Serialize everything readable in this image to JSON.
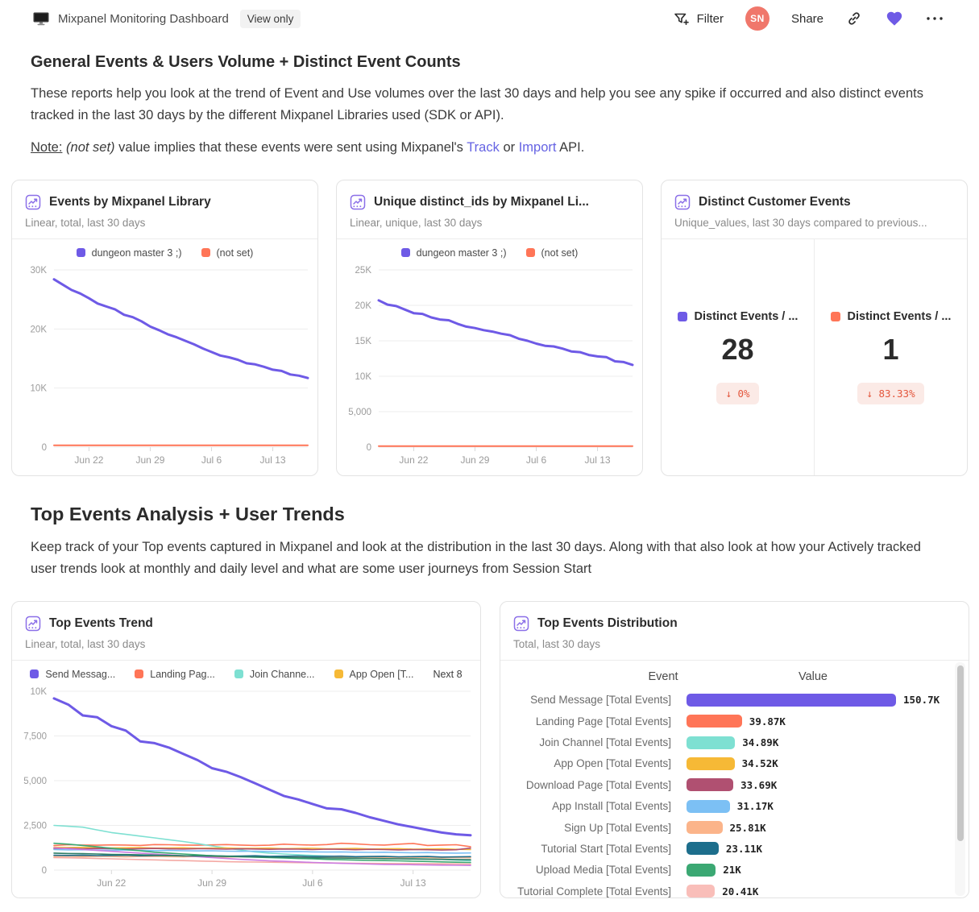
{
  "topbar": {
    "title": "Mixpanel Monitoring Dashboard",
    "view_only": "View only",
    "filter_label": "Filter",
    "avatar_initials": "SN",
    "share_label": "Share"
  },
  "colors": {
    "accent_purple": "#6E5AE6",
    "accent_coral": "#FF7557",
    "icon_purple": "#8B6FE8",
    "delta_red": "#E4573D",
    "delta_bg": "#FBEAE6"
  },
  "section1": {
    "title": "General Events & Users Volume + Distinct Event Counts",
    "description": "These reports help you look at the trend of Event and Use volumes over the last 30 days and help you see any spike if occurred and also distinct events tracked in the last 30 days by the different Mixpanel Libraries used (SDK or API).",
    "note": {
      "label": "Note:",
      "notset": " (not set) ",
      "mid": "value implies that these events were sent using Mixpanel's ",
      "link_track": "Track",
      "or": " or ",
      "link_import": "Import",
      "suffix": " API."
    }
  },
  "cards": {
    "events_by_library": {
      "title": "Events by Mixpanel Library",
      "subtitle": "Linear, total, last 30 days",
      "legend": [
        {
          "label": "dungeon master 3 ;)",
          "color": "#6E5AE6"
        },
        {
          "label": "(not set)",
          "color": "#FF7557"
        }
      ],
      "chart_data": {
        "type": "line",
        "n": 30,
        "ylim": [
          0,
          30000
        ],
        "x_ticks": [
          {
            "i": 4,
            "label": "Jun 22"
          },
          {
            "i": 11,
            "label": "Jun 29"
          },
          {
            "i": 18,
            "label": "Jul 6"
          },
          {
            "i": 25,
            "label": "Jul 13"
          }
        ],
        "y_ticks": [
          {
            "v": 0,
            "label": "0"
          },
          {
            "v": 10000,
            "label": "10K"
          },
          {
            "v": 20000,
            "label": "20K"
          },
          {
            "v": 30000,
            "label": "30K"
          }
        ],
        "series": [
          {
            "name": "dungeon master 3 ;)",
            "color": "#6E5AE6",
            "w": 3,
            "values": [
              28400,
              27500,
              26600,
              26000,
              25200,
              24300,
              23800,
              23300,
              22400,
              22000,
              21300,
              20400,
              19800,
              19100,
              18600,
              18000,
              17400,
              16700,
              16100,
              15500,
              15200,
              14800,
              14200,
              14000,
              13600,
              13100,
              12900,
              12300,
              12100,
              11700
            ]
          },
          {
            "name": "(not set)",
            "color": "#FF7557",
            "w": 2,
            "values": [
              300,
              300,
              300,
              300,
              300,
              300,
              300,
              300,
              300,
              300,
              300,
              300,
              300,
              300,
              300,
              300,
              300,
              300,
              300,
              300,
              300,
              300,
              300,
              300,
              300,
              300,
              300,
              300,
              300,
              300
            ]
          }
        ]
      }
    },
    "unique_ids": {
      "title": "Unique distinct_ids by Mixpanel Li...",
      "subtitle": "Linear, unique, last 30 days",
      "legend": [
        {
          "label": "dungeon master 3 ;)",
          "color": "#6E5AE6"
        },
        {
          "label": "(not set)",
          "color": "#FF7557"
        }
      ],
      "chart_data": {
        "type": "line",
        "n": 30,
        "ylim": [
          0,
          25000
        ],
        "x_ticks": [
          {
            "i": 4,
            "label": "Jun 22"
          },
          {
            "i": 11,
            "label": "Jun 29"
          },
          {
            "i": 18,
            "label": "Jul 6"
          },
          {
            "i": 25,
            "label": "Jul 13"
          }
        ],
        "y_ticks": [
          {
            "v": 0,
            "label": "0"
          },
          {
            "v": 5000,
            "label": "5,000"
          },
          {
            "v": 10000,
            "label": "10K"
          },
          {
            "v": 15000,
            "label": "15K"
          },
          {
            "v": 20000,
            "label": "20K"
          },
          {
            "v": 25000,
            "label": "25K"
          }
        ],
        "series": [
          {
            "name": "dungeon master 3 ;)",
            "color": "#6E5AE6",
            "w": 3,
            "values": [
              20700,
              20100,
              19900,
              19400,
              18900,
              18800,
              18300,
              18000,
              17900,
              17400,
              17000,
              16800,
              16500,
              16300,
              16000,
              15800,
              15300,
              15000,
              14600,
              14300,
              14200,
              13900,
              13500,
              13400,
              13000,
              12800,
              12700,
              12100,
              12000,
              11600
            ]
          },
          {
            "name": "(not set)",
            "color": "#FF7557",
            "w": 2,
            "values": [
              150,
              150,
              150,
              150,
              150,
              150,
              150,
              150,
              150,
              150,
              150,
              150,
              150,
              150,
              150,
              150,
              150,
              150,
              150,
              150,
              150,
              150,
              150,
              150,
              150,
              150,
              150,
              150,
              150,
              150
            ]
          }
        ]
      }
    },
    "distinct_customer": {
      "title": "Distinct Customer Events",
      "subtitle": "Unique_values, last 30 days compared to previous...",
      "metrics": [
        {
          "label": "Distinct Events / ...",
          "color": "#6E5AE6",
          "value": "28",
          "delta": "↓ 0%"
        },
        {
          "label": "Distinct Events / ...",
          "color": "#FF7557",
          "value": "1",
          "delta": "↓ 83.33%"
        }
      ]
    }
  },
  "section2": {
    "title": "Top Events Analysis + User Trends",
    "description": "Keep track of your Top events captured in Mixpanel and look at the distribution in the last 30 days. Along with that also look at how your Actively tracked user trends look at monthly and daily level and what are some user journeys from Session Start"
  },
  "trend_card": {
    "title": "Top Events Trend",
    "subtitle": "Linear, total, last 30 days",
    "legend": [
      {
        "label": "Send Messag...",
        "color": "#6E5AE6"
      },
      {
        "label": "Landing Pag...",
        "color": "#FF7557"
      },
      {
        "label": "Join Channe...",
        "color": "#7EE0D2"
      },
      {
        "label": "App Open [T...",
        "color": "#F6B936"
      }
    ],
    "legend_more": "Next 8",
    "chart_data": {
      "type": "line",
      "n": 30,
      "ylim": [
        0,
        10000
      ],
      "x_ticks": [
        {
          "i": 4,
          "label": "Jun 22"
        },
        {
          "i": 11,
          "label": "Jun 29"
        },
        {
          "i": 18,
          "label": "Jul 6"
        },
        {
          "i": 25,
          "label": "Jul 13"
        }
      ],
      "y_ticks": [
        {
          "v": 0,
          "label": "0"
        },
        {
          "v": 2500,
          "label": "2,500"
        },
        {
          "v": 5000,
          "label": "5,000"
        },
        {
          "v": 7500,
          "label": "7,500"
        },
        {
          "v": 10000,
          "label": "10K"
        }
      ],
      "series": [
        {
          "name": "Send Message [Total Events]",
          "color": "#6E5AE6",
          "w": 3,
          "values": [
            9600,
            9250,
            8650,
            8550,
            8050,
            7800,
            7200,
            7100,
            6850,
            6500,
            6150,
            5700,
            5500,
            5200,
            4850,
            4500,
            4150,
            3950,
            3700,
            3450,
            3400,
            3200,
            2950,
            2750,
            2550,
            2400,
            2250,
            2100,
            2000,
            1950
          ]
        },
        {
          "name": "Landing Page [Total Events]",
          "color": "#FF7557",
          "w": 1.6,
          "values": [
            1380,
            1420,
            1400,
            1390,
            1410,
            1400,
            1380,
            1430,
            1420,
            1400,
            1390,
            1410,
            1430,
            1400,
            1380,
            1390,
            1450,
            1420,
            1400,
            1430,
            1500,
            1470,
            1420,
            1400,
            1450,
            1490,
            1380,
            1400,
            1420,
            1310
          ]
        },
        {
          "name": "Join Channel [Total Events]",
          "color": "#7EE0D2",
          "w": 1.6,
          "values": [
            2500,
            2450,
            2400,
            2250,
            2100,
            2000,
            1900,
            1800,
            1700,
            1600,
            1480,
            1350,
            1230,
            1120,
            1020,
            950,
            900,
            860,
            820,
            790,
            760,
            740,
            720,
            700,
            680,
            660,
            640,
            600,
            560,
            520
          ]
        },
        {
          "name": "App Open [Total Events]",
          "color": "#F6B936",
          "w": 1.6,
          "values": [
            1280,
            1260,
            1270,
            1250,
            1240,
            1250,
            1260,
            1230,
            1240,
            1250,
            1220,
            1230,
            1240,
            1210,
            1220,
            1230,
            1200,
            1210,
            1220,
            1190,
            1200,
            1210,
            1180,
            1190,
            1200,
            1170,
            1180,
            1190,
            1160,
            1150
          ]
        },
        {
          "color": "#B05071",
          "w": 1.6,
          "values": [
            1200,
            1220,
            1190,
            1210,
            1200,
            1180,
            1200,
            1210,
            1190,
            1180,
            1200,
            1190,
            1170,
            1190,
            1180,
            1160,
            1180,
            1170,
            1150,
            1170,
            1160,
            1140,
            1160,
            1150,
            1130,
            1150,
            1140,
            1120,
            1140,
            1230
          ]
        },
        {
          "color": "#7CC0F4",
          "w": 1.6,
          "values": [
            1150,
            1130,
            1140,
            1120,
            1110,
            1120,
            1100,
            1090,
            1100,
            1080,
            1070,
            1080,
            1060,
            1050,
            1060,
            1040,
            1030,
            1040,
            1020,
            1010,
            1020,
            1000,
            990,
            1000,
            980,
            970,
            980,
            960,
            950,
            960
          ]
        },
        {
          "color": "#FBB48A",
          "w": 1.6,
          "values": [
            760,
            780,
            750,
            770,
            760,
            740,
            760,
            770,
            750,
            740,
            760,
            750,
            730,
            750,
            740,
            720,
            740,
            730,
            710,
            730,
            720,
            700,
            720,
            710,
            690,
            710,
            700,
            680,
            700,
            690
          ]
        },
        {
          "color": "#1D6E8C",
          "w": 1.6,
          "values": [
            830,
            820,
            830,
            810,
            820,
            830,
            800,
            810,
            820,
            790,
            800,
            810,
            780,
            790,
            800,
            770,
            780,
            790,
            760,
            770,
            780,
            750,
            760,
            770,
            740,
            750,
            760,
            730,
            740,
            750
          ]
        },
        {
          "color": "#3BA873",
          "w": 1.6,
          "values": [
            1500,
            1450,
            1380,
            1300,
            1220,
            1150,
            1080,
            1000,
            950,
            900,
            850,
            800,
            780,
            750,
            720,
            700,
            680,
            650,
            630,
            600,
            580,
            560,
            540,
            530,
            520,
            500,
            480,
            460,
            440,
            430
          ]
        },
        {
          "color": "#F4A9A4",
          "w": 1.6,
          "values": [
            700,
            690,
            670,
            650,
            630,
            610,
            590,
            570,
            550,
            530,
            510,
            490,
            470,
            460,
            450,
            440,
            430,
            420,
            410,
            400,
            390,
            380,
            375,
            370,
            365,
            360,
            355,
            350,
            345,
            340
          ]
        },
        {
          "color": "#CC7CE0",
          "w": 1.6,
          "values": [
            1250,
            1200,
            1150,
            1100,
            1050,
            1000,
            950,
            900,
            850,
            800,
            750,
            700,
            650,
            600,
            560,
            520,
            490,
            460,
            430,
            400,
            380,
            360,
            340,
            320,
            310,
            300,
            290,
            280,
            270,
            260
          ]
        },
        {
          "color": "#2E7D66",
          "w": 1.6,
          "values": [
            950,
            930,
            920,
            900,
            880,
            870,
            850,
            840,
            820,
            800,
            790,
            780,
            760,
            750,
            740,
            720,
            710,
            700,
            690,
            680,
            670,
            660,
            650,
            640,
            630,
            620,
            610,
            600,
            590,
            580
          ]
        }
      ]
    }
  },
  "distribution_card": {
    "title": "Top Events Distribution",
    "subtitle": "Total, last 30 days",
    "columns": {
      "event": "Event",
      "value": "Value"
    },
    "chart_data": {
      "type": "bar",
      "categories": [
        "Send Message [Total Events]",
        "Landing Page [Total Events]",
        "Join Channel [Total Events]",
        "App Open [Total Events]",
        "Download Page [Total Events]",
        "App Install [Total Events]",
        "Sign Up [Total Events]",
        "Tutorial Start [Total Events]",
        "Upload Media [Total Events]",
        "Tutorial Complete [Total Events]"
      ],
      "values": [
        150700,
        39870,
        34890,
        34520,
        33690,
        31170,
        25810,
        23110,
        21000,
        20410
      ]
    },
    "rows": [
      {
        "label": "Send Message [Total Events]",
        "value": "150.7K",
        "raw": 150700,
        "color": "#6E5AE6"
      },
      {
        "label": "Landing Page [Total Events]",
        "value": "39.87K",
        "raw": 39870,
        "color": "#FF7557"
      },
      {
        "label": "Join Channel [Total Events]",
        "value": "34.89K",
        "raw": 34890,
        "color": "#7EE0D2"
      },
      {
        "label": "App Open [Total Events]",
        "value": "34.52K",
        "raw": 34520,
        "color": "#F6B936"
      },
      {
        "label": "Download Page [Total Events]",
        "value": "33.69K",
        "raw": 33690,
        "color": "#B05071"
      },
      {
        "label": "App Install [Total Events]",
        "value": "31.17K",
        "raw": 31170,
        "color": "#7CC0F4"
      },
      {
        "label": "Sign Up [Total Events]",
        "value": "25.81K",
        "raw": 25810,
        "color": "#FBB48A"
      },
      {
        "label": "Tutorial Start [Total Events]",
        "value": "23.11K",
        "raw": 23110,
        "color": "#1D6E8C"
      },
      {
        "label": "Upload Media [Total Events]",
        "value": "21K",
        "raw": 21000,
        "color": "#3BA873"
      },
      {
        "label": "Tutorial Complete [Total Events]",
        "value": "20.41K",
        "raw": 20410,
        "color": "#F9BEB9"
      }
    ]
  }
}
